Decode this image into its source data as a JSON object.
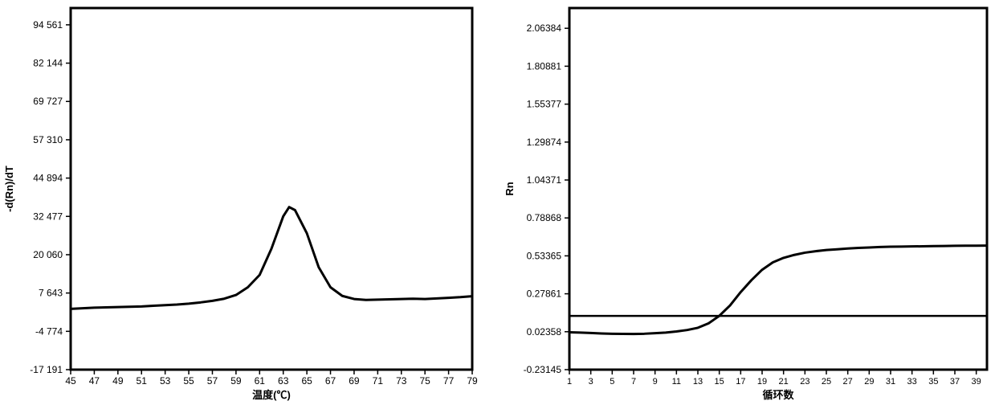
{
  "melt_chart": {
    "type": "line",
    "title": null,
    "xlabel": "温度(℃)",
    "ylabel": "-d(Rn)/dT",
    "xlim": [
      45,
      79
    ],
    "ylim": [
      -17191,
      100000
    ],
    "xtick_step": 2,
    "xticks": [
      45,
      47,
      49,
      51,
      53,
      55,
      57,
      59,
      61,
      63,
      65,
      67,
      69,
      71,
      73,
      75,
      77,
      79
    ],
    "yticks_labels": [
      "-17 191",
      "-4 774",
      "7 643",
      "20 060",
      "32 477",
      "44 894",
      "57 310",
      "69 727",
      "82 144",
      "94 561"
    ],
    "yticks_values": [
      -17191,
      -4774,
      7643,
      20060,
      32477,
      44894,
      57310,
      69727,
      82144,
      94561
    ],
    "series_color": "#000000",
    "line_width": 3,
    "background_color": "#ffffff",
    "border_color": "#000000",
    "border_width": 3,
    "label_fontsize": 12,
    "data": [
      {
        "x": 45,
        "y": 2500
      },
      {
        "x": 46,
        "y": 2700
      },
      {
        "x": 47,
        "y": 2900
      },
      {
        "x": 48,
        "y": 3000
      },
      {
        "x": 49,
        "y": 3100
      },
      {
        "x": 50,
        "y": 3200
      },
      {
        "x": 51,
        "y": 3300
      },
      {
        "x": 52,
        "y": 3500
      },
      {
        "x": 53,
        "y": 3700
      },
      {
        "x": 54,
        "y": 3900
      },
      {
        "x": 55,
        "y": 4200
      },
      {
        "x": 56,
        "y": 4600
      },
      {
        "x": 57,
        "y": 5100
      },
      {
        "x": 58,
        "y": 5800
      },
      {
        "x": 59,
        "y": 7000
      },
      {
        "x": 60,
        "y": 9500
      },
      {
        "x": 61,
        "y": 13500
      },
      {
        "x": 62,
        "y": 22000
      },
      {
        "x": 63,
        "y": 32500
      },
      {
        "x": 63.5,
        "y": 35500
      },
      {
        "x": 64,
        "y": 34500
      },
      {
        "x": 65,
        "y": 27000
      },
      {
        "x": 66,
        "y": 16000
      },
      {
        "x": 67,
        "y": 9500
      },
      {
        "x": 68,
        "y": 6700
      },
      {
        "x": 69,
        "y": 5700
      },
      {
        "x": 70,
        "y": 5400
      },
      {
        "x": 71,
        "y": 5500
      },
      {
        "x": 72,
        "y": 5600
      },
      {
        "x": 73,
        "y": 5700
      },
      {
        "x": 74,
        "y": 5800
      },
      {
        "x": 75,
        "y": 5700
      },
      {
        "x": 76,
        "y": 5900
      },
      {
        "x": 77,
        "y": 6100
      },
      {
        "x": 78,
        "y": 6300
      },
      {
        "x": 79,
        "y": 6600
      }
    ]
  },
  "amp_chart": {
    "type": "line",
    "title": null,
    "xlabel": "循环数",
    "ylabel": "Rn",
    "xlim": [
      1,
      40
    ],
    "ylim": [
      -0.23145,
      2.2
    ],
    "xtick_step": 2,
    "xticks": [
      1,
      3,
      5,
      7,
      9,
      11,
      13,
      15,
      17,
      19,
      21,
      23,
      25,
      27,
      29,
      31,
      33,
      35,
      37,
      39
    ],
    "yticks_labels": [
      "-0.23145",
      "0.02358",
      "0.27861",
      "0.53365",
      "0.78868",
      "1.04371",
      "1.29874",
      "1.55377",
      "1.80881",
      "2.06384"
    ],
    "yticks_values": [
      -0.23145,
      0.02358,
      0.27861,
      0.53365,
      0.78868,
      1.04371,
      1.29874,
      1.55377,
      1.80881,
      2.06384
    ],
    "threshold_y": 0.13,
    "series_color": "#000000",
    "line_width": 3,
    "threshold_color": "#000000",
    "threshold_width": 2.5,
    "background_color": "#ffffff",
    "border_color": "#000000",
    "border_width": 3,
    "label_fontsize": 12,
    "data": [
      {
        "x": 1,
        "y": 0.02
      },
      {
        "x": 2,
        "y": 0.018
      },
      {
        "x": 3,
        "y": 0.015
      },
      {
        "x": 4,
        "y": 0.012
      },
      {
        "x": 5,
        "y": 0.01
      },
      {
        "x": 6,
        "y": 0.009
      },
      {
        "x": 7,
        "y": 0.008
      },
      {
        "x": 8,
        "y": 0.01
      },
      {
        "x": 9,
        "y": 0.014
      },
      {
        "x": 10,
        "y": 0.018
      },
      {
        "x": 11,
        "y": 0.025
      },
      {
        "x": 12,
        "y": 0.035
      },
      {
        "x": 13,
        "y": 0.05
      },
      {
        "x": 14,
        "y": 0.08
      },
      {
        "x": 15,
        "y": 0.13
      },
      {
        "x": 16,
        "y": 0.2
      },
      {
        "x": 17,
        "y": 0.29
      },
      {
        "x": 18,
        "y": 0.37
      },
      {
        "x": 19,
        "y": 0.44
      },
      {
        "x": 20,
        "y": 0.49
      },
      {
        "x": 21,
        "y": 0.52
      },
      {
        "x": 22,
        "y": 0.54
      },
      {
        "x": 23,
        "y": 0.555
      },
      {
        "x": 24,
        "y": 0.565
      },
      {
        "x": 25,
        "y": 0.573
      },
      {
        "x": 26,
        "y": 0.578
      },
      {
        "x": 27,
        "y": 0.583
      },
      {
        "x": 28,
        "y": 0.587
      },
      {
        "x": 29,
        "y": 0.59
      },
      {
        "x": 30,
        "y": 0.593
      },
      {
        "x": 31,
        "y": 0.595
      },
      {
        "x": 32,
        "y": 0.596
      },
      {
        "x": 33,
        "y": 0.597
      },
      {
        "x": 34,
        "y": 0.598
      },
      {
        "x": 35,
        "y": 0.599
      },
      {
        "x": 36,
        "y": 0.6
      },
      {
        "x": 37,
        "y": 0.601
      },
      {
        "x": 38,
        "y": 0.602
      },
      {
        "x": 39,
        "y": 0.602
      },
      {
        "x": 40,
        "y": 0.603
      }
    ]
  }
}
